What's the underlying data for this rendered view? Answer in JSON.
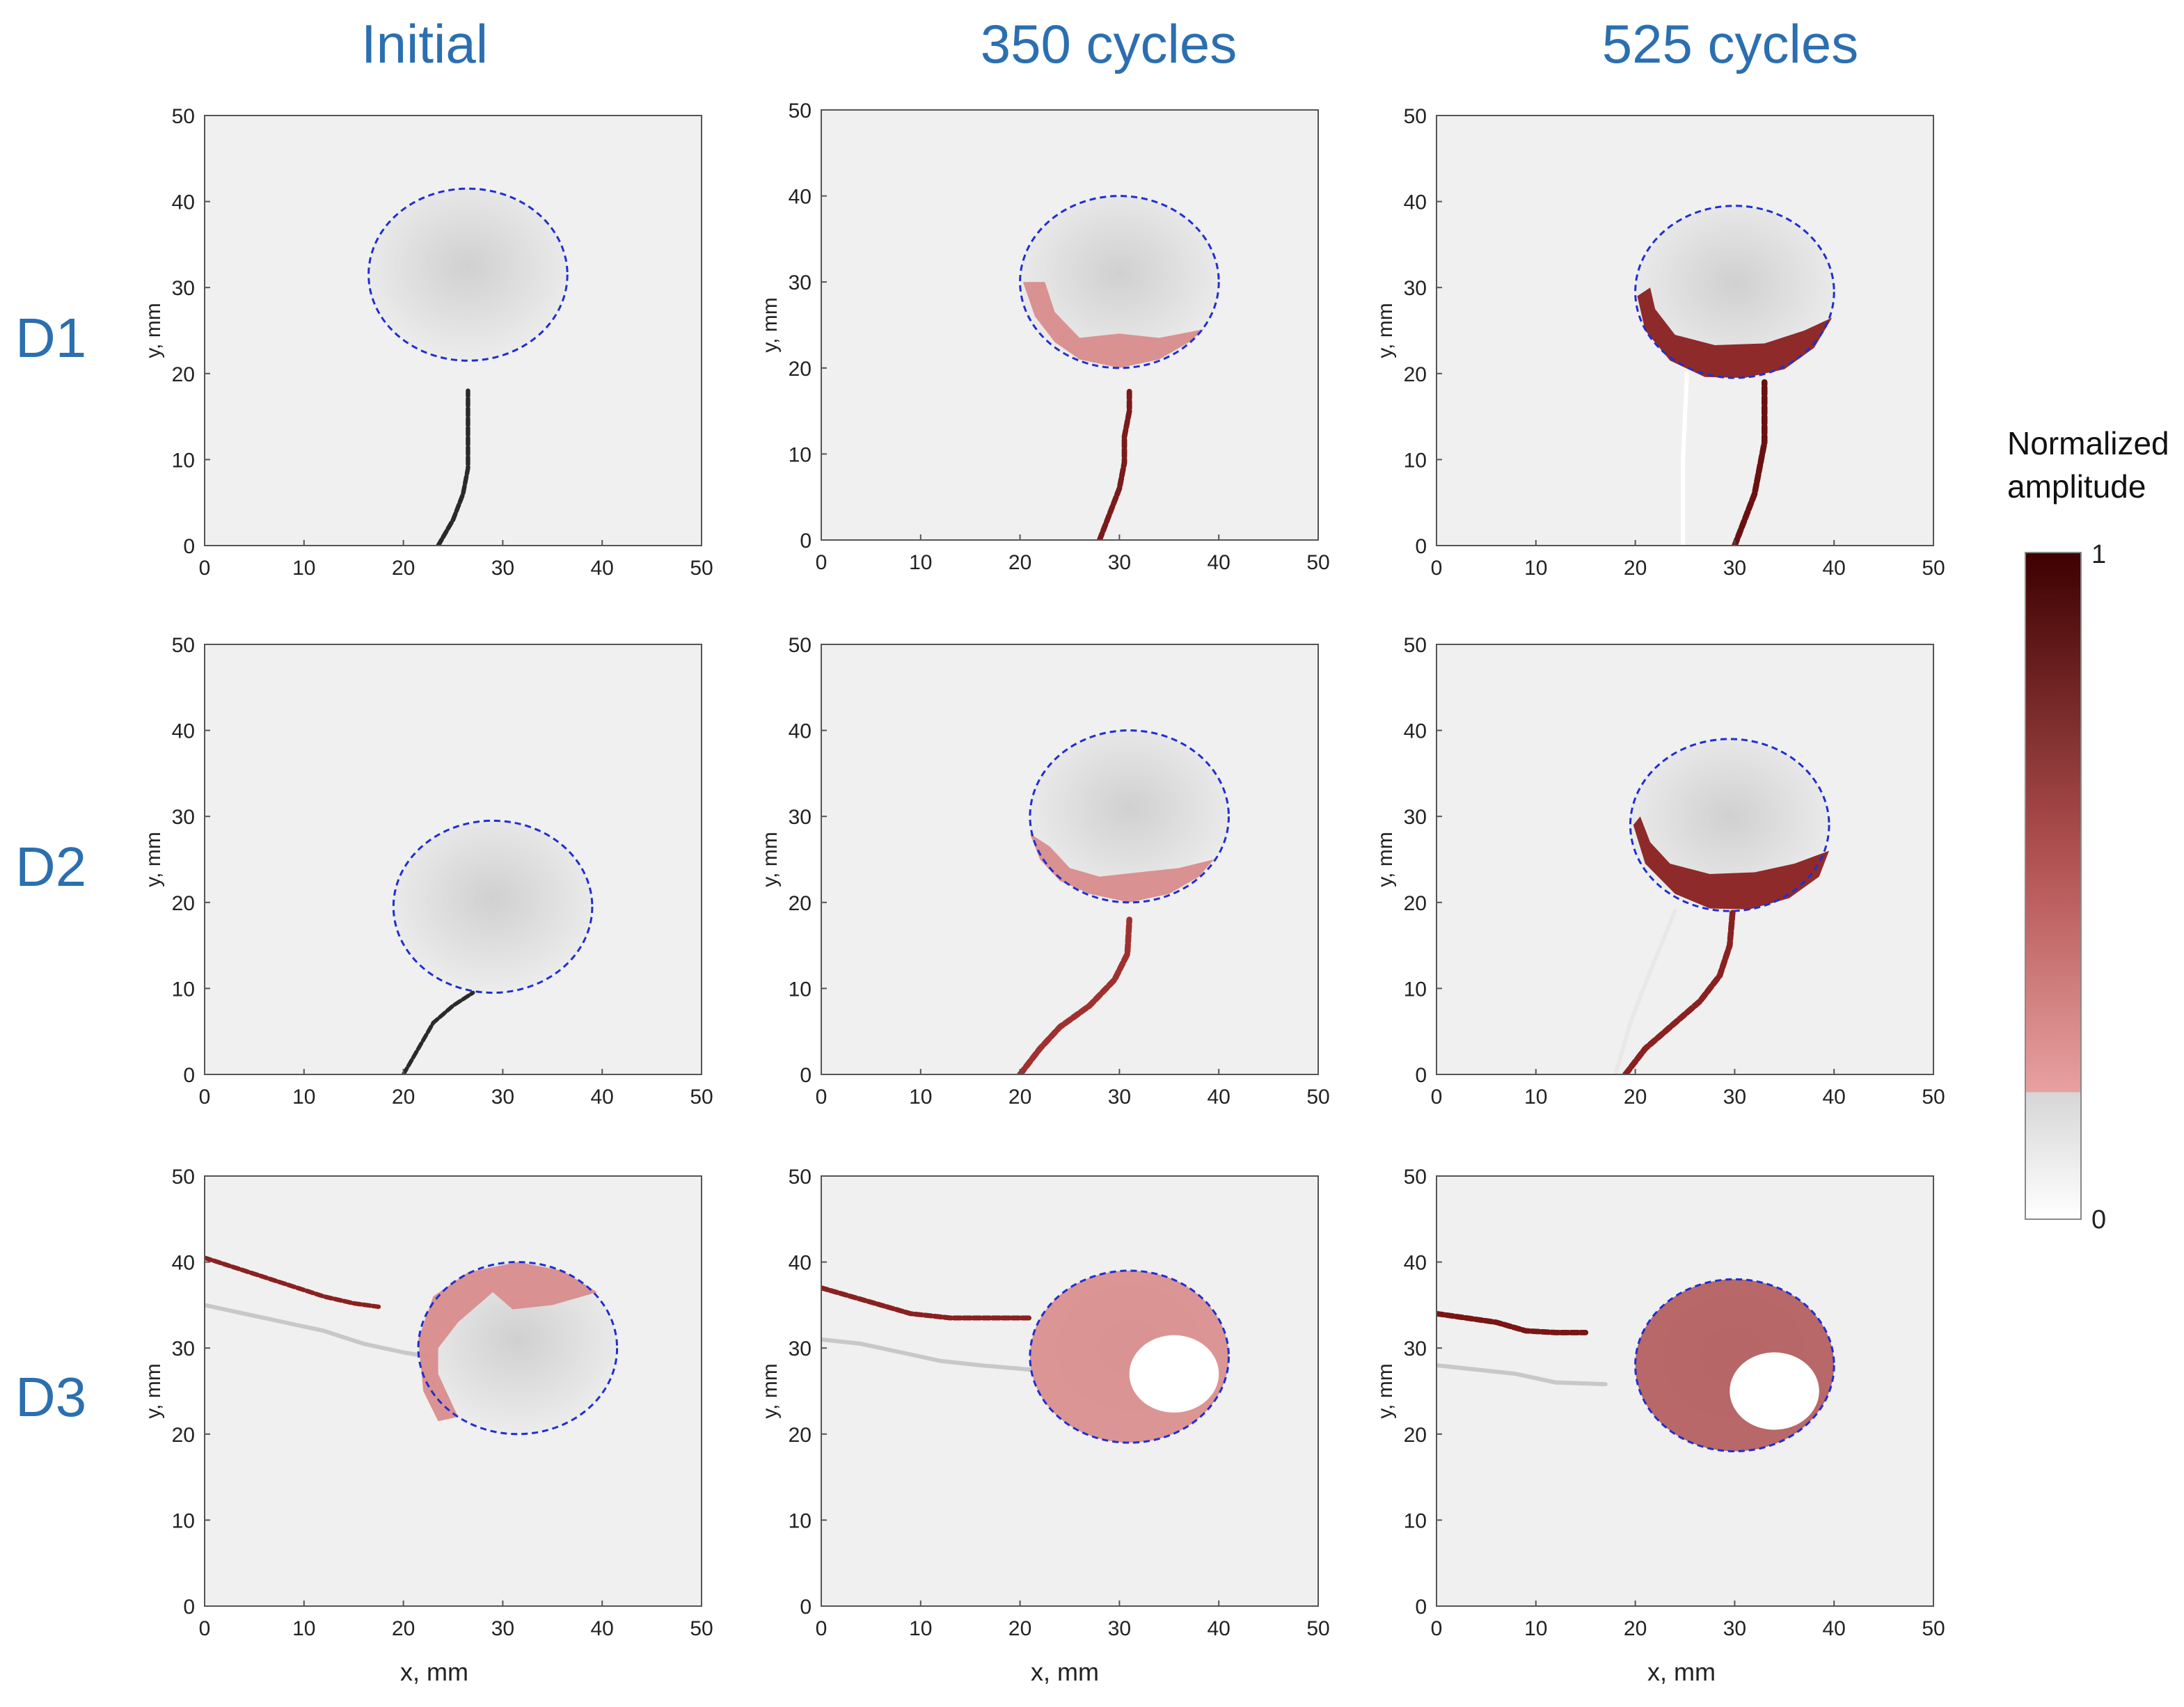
{
  "column_titles": [
    "Initial",
    "350 cycles",
    "525 cycles"
  ],
  "row_labels": [
    "D1",
    "D2",
    "D3"
  ],
  "x_axis_label": "x, mm",
  "y_axis_label": "y, mm",
  "colorbar": {
    "title_line1": "Normalized",
    "title_line2": "amplitude",
    "max_label": "1",
    "min_label": "0",
    "colors": {
      "low": "#ffffff",
      "mid_gray": "#d6d6d6",
      "threshold_red": "#e8a0a0",
      "high": "#3d0000"
    }
  },
  "colors": {
    "title_blue": "#2b6fb0",
    "ellipse_dash": "#1f2fd0",
    "background_gray": "#f0f0f0",
    "damage_light": "#d88a8a",
    "damage_dark": "#6b1010"
  },
  "chart_data": [
    {
      "type": "heatmap",
      "row": "D1",
      "col": "Initial",
      "xlim": [
        0,
        50
      ],
      "ylim": [
        0,
        50
      ],
      "xticks": [
        0,
        10,
        20,
        30,
        40,
        50
      ],
      "yticks": [
        0,
        10,
        20,
        30,
        40,
        50
      ],
      "ellipse": {
        "cx": 26.5,
        "cy": 31.5,
        "rx": 10,
        "ry": 10
      },
      "crack": [
        [
          23.5,
          0
        ],
        [
          25,
          3
        ],
        [
          26,
          6
        ],
        [
          26.5,
          9
        ],
        [
          26.5,
          12
        ],
        [
          26.5,
          15
        ],
        [
          26.5,
          18
        ]
      ],
      "crack_color": "#2a2a2a",
      "crack_width": 0.45,
      "crack2": [],
      "crack2_color": "#c4c4c4",
      "damage": {
        "points": [],
        "color": ""
      }
    },
    {
      "type": "heatmap",
      "row": "D1",
      "col": "350 cycles",
      "xlim": [
        0,
        50
      ],
      "ylim": [
        0,
        50
      ],
      "xticks": [
        0,
        10,
        20,
        30,
        40,
        50
      ],
      "yticks": [
        0,
        10,
        20,
        30,
        40,
        50
      ],
      "ellipse": {
        "cx": 30,
        "cy": 30,
        "rx": 10,
        "ry": 10
      },
      "crack": [
        [
          28,
          0
        ],
        [
          29,
          3
        ],
        [
          30,
          6
        ],
        [
          30.5,
          9
        ],
        [
          30.5,
          12
        ],
        [
          31,
          15
        ],
        [
          31,
          17.5
        ]
      ],
      "crack_color": "#7a1a1a",
      "crack_width": 0.55,
      "crack2": [],
      "crack2_color": "#c4c4c4",
      "damage": {
        "points": [
          [
            20.3,
            30
          ],
          [
            21.5,
            26
          ],
          [
            23.5,
            23
          ],
          [
            26,
            21
          ],
          [
            30,
            20
          ],
          [
            34,
            21
          ],
          [
            37,
            23
          ],
          [
            38.5,
            24.5
          ],
          [
            34,
            23.5
          ],
          [
            30,
            24
          ],
          [
            26,
            23.5
          ],
          [
            23.5,
            26.5
          ],
          [
            22.5,
            30
          ]
        ],
        "color": "#d98c8c"
      }
    },
    {
      "type": "heatmap",
      "row": "D1",
      "col": "525 cycles",
      "xlim": [
        0,
        50
      ],
      "ylim": [
        0,
        50
      ],
      "xticks": [
        0,
        10,
        20,
        30,
        40,
        50
      ],
      "yticks": [
        0,
        10,
        20,
        30,
        40,
        50
      ],
      "ellipse": {
        "cx": 30,
        "cy": 29.5,
        "rx": 10,
        "ry": 10
      },
      "crack": [
        [
          30,
          0
        ],
        [
          31,
          3
        ],
        [
          32,
          6
        ],
        [
          32.5,
          9
        ],
        [
          33,
          12
        ],
        [
          33,
          15
        ],
        [
          33,
          19
        ]
      ],
      "crack_color": "#6b1010",
      "crack_width": 0.6,
      "crack2": [
        [
          24.8,
          0
        ],
        [
          24.8,
          10
        ],
        [
          25.2,
          20
        ]
      ],
      "crack2_color": "#ffffff",
      "damage": {
        "points": [
          [
            20.2,
            29
          ],
          [
            21,
            25
          ],
          [
            23.5,
            21.5
          ],
          [
            27,
            19.6
          ],
          [
            31,
            19.5
          ],
          [
            35,
            20.5
          ],
          [
            38,
            23
          ],
          [
            39.8,
            26.5
          ],
          [
            37,
            25
          ],
          [
            33,
            23.5
          ],
          [
            28,
            23.3
          ],
          [
            24,
            24.5
          ],
          [
            22,
            27.5
          ],
          [
            21.5,
            30
          ]
        ],
        "color": "#8a2020"
      }
    },
    {
      "type": "heatmap",
      "row": "D2",
      "col": "Initial",
      "xlim": [
        0,
        50
      ],
      "ylim": [
        0,
        50
      ],
      "xticks": [
        0,
        10,
        20,
        30,
        40,
        50
      ],
      "yticks": [
        0,
        10,
        20,
        30,
        40,
        50
      ],
      "ellipse": {
        "cx": 29,
        "cy": 19.5,
        "rx": 10,
        "ry": 10
      },
      "crack": [
        [
          20,
          0
        ],
        [
          21.5,
          3
        ],
        [
          23,
          6
        ],
        [
          25,
          8
        ],
        [
          27,
          9.5
        ]
      ],
      "crack_color": "#2a2a2a",
      "crack_width": 0.4,
      "crack2": [],
      "crack2_color": "#c4c4c4",
      "damage": {
        "points": [],
        "color": ""
      }
    },
    {
      "type": "heatmap",
      "row": "D2",
      "col": "350 cycles",
      "xlim": [
        0,
        50
      ],
      "ylim": [
        0,
        50
      ],
      "xticks": [
        0,
        10,
        20,
        30,
        40,
        50
      ],
      "yticks": [
        0,
        10,
        20,
        30,
        40,
        50
      ],
      "ellipse": {
        "cx": 31,
        "cy": 30,
        "rx": 10,
        "ry": 10
      },
      "crack": [
        [
          20,
          0
        ],
        [
          22,
          3
        ],
        [
          24,
          5.5
        ],
        [
          27,
          8
        ],
        [
          29.5,
          11
        ],
        [
          30.8,
          14
        ],
        [
          31,
          18
        ]
      ],
      "crack_color": "#a03030",
      "crack_width": 0.6,
      "crack2": [],
      "crack2_color": "#c4c4c4",
      "damage": {
        "points": [
          [
            21,
            28
          ],
          [
            22,
            25
          ],
          [
            24,
            22.5
          ],
          [
            27,
            21
          ],
          [
            31,
            20
          ],
          [
            35,
            21
          ],
          [
            38,
            23
          ],
          [
            39.5,
            25
          ],
          [
            36,
            24
          ],
          [
            32,
            23.5
          ],
          [
            28,
            23
          ],
          [
            25,
            24
          ],
          [
            23,
            26.5
          ]
        ],
        "color": "#d98c8c"
      }
    },
    {
      "type": "heatmap",
      "row": "D2",
      "col": "525 cycles",
      "xlim": [
        0,
        50
      ],
      "ylim": [
        0,
        50
      ],
      "xticks": [
        0,
        10,
        20,
        30,
        40,
        50
      ],
      "yticks": [
        0,
        10,
        20,
        30,
        40,
        50
      ],
      "ellipse": {
        "cx": 29.5,
        "cy": 29,
        "rx": 10,
        "ry": 10
      },
      "crack": [
        [
          19,
          0
        ],
        [
          21,
          3
        ],
        [
          23.5,
          5.5
        ],
        [
          26.5,
          8.5
        ],
        [
          28.5,
          11.5
        ],
        [
          29.5,
          15
        ],
        [
          29.8,
          19
        ]
      ],
      "crack_color": "#8a2020",
      "crack_width": 0.6,
      "crack2": [
        [
          18,
          0
        ],
        [
          19.5,
          6
        ],
        [
          21.5,
          12
        ],
        [
          24,
          19
        ]
      ],
      "crack2_color": "#e8e8e8",
      "damage": {
        "points": [
          [
            19.8,
            29
          ],
          [
            21,
            24.5
          ],
          [
            24,
            21
          ],
          [
            27.5,
            19.3
          ],
          [
            31.5,
            19.2
          ],
          [
            35.5,
            20.5
          ],
          [
            38.5,
            23
          ],
          [
            39.5,
            26
          ],
          [
            36,
            24.5
          ],
          [
            32,
            23.5
          ],
          [
            27.5,
            23.3
          ],
          [
            23.5,
            24.5
          ],
          [
            21.5,
            27
          ],
          [
            20.5,
            30
          ]
        ],
        "color": "#8a2020"
      }
    },
    {
      "type": "heatmap",
      "row": "D3",
      "col": "Initial",
      "xlim": [
        0,
        50
      ],
      "ylim": [
        0,
        50
      ],
      "xticks": [
        0,
        10,
        20,
        30,
        40,
        50
      ],
      "yticks": [
        0,
        10,
        20,
        30,
        40,
        50
      ],
      "ellipse": {
        "cx": 31.5,
        "cy": 30,
        "rx": 10,
        "ry": 10
      },
      "crack": [
        [
          0,
          40.5
        ],
        [
          4,
          39
        ],
        [
          8,
          37.5
        ],
        [
          12,
          36
        ],
        [
          15,
          35.2
        ],
        [
          17.5,
          34.8
        ]
      ],
      "crack_color": "#8a2020",
      "crack_width": 0.45,
      "crack2": [
        [
          0,
          35
        ],
        [
          4,
          34
        ],
        [
          8,
          33
        ],
        [
          12,
          32
        ],
        [
          16,
          30.5
        ],
        [
          20,
          29.5
        ],
        [
          22.5,
          29
        ]
      ],
      "crack2_color": "#c8c8c8",
      "damage": {
        "points": [
          [
            21.5,
            31
          ],
          [
            23,
            36
          ],
          [
            26.5,
            38.8
          ],
          [
            31.5,
            40
          ],
          [
            36,
            39
          ],
          [
            39.5,
            36.5
          ],
          [
            35,
            35
          ],
          [
            31,
            34.5
          ],
          [
            29,
            36.5
          ],
          [
            27.5,
            35
          ],
          [
            25.5,
            33
          ],
          [
            23.5,
            30
          ],
          [
            23.5,
            27
          ],
          [
            25.5,
            22
          ],
          [
            23.5,
            21.5
          ],
          [
            22,
            25
          ]
        ],
        "color": "#d98c8c"
      }
    },
    {
      "type": "heatmap",
      "row": "D3",
      "col": "350 cycles",
      "xlim": [
        0,
        50
      ],
      "ylim": [
        0,
        50
      ],
      "xticks": [
        0,
        10,
        20,
        30,
        40,
        50
      ],
      "yticks": [
        0,
        10,
        20,
        30,
        40,
        50
      ],
      "ellipse": {
        "cx": 31,
        "cy": 29,
        "rx": 10,
        "ry": 10
      },
      "crack": [
        [
          0,
          37
        ],
        [
          3,
          36
        ],
        [
          6,
          35
        ],
        [
          9,
          34
        ],
        [
          13,
          33.5
        ],
        [
          17,
          33.5
        ],
        [
          21,
          33.5
        ]
      ],
      "crack_color": "#8a2020",
      "crack_width": 0.5,
      "crack2": [
        [
          0,
          31
        ],
        [
          4,
          30.5
        ],
        [
          8,
          29.5
        ],
        [
          12,
          28.5
        ],
        [
          16,
          28
        ],
        [
          21,
          27.5
        ]
      ],
      "crack2_color": "#c8c8c8",
      "damage": {
        "points": [],
        "color": "#d98c8c",
        "fill_ellipse": true,
        "white_blob": {
          "cx": 35.5,
          "cy": 27,
          "rx": 4.5,
          "ry": 4.5
        }
      }
    },
    {
      "type": "heatmap",
      "row": "D3",
      "col": "525 cycles",
      "xlim": [
        0,
        50
      ],
      "ylim": [
        0,
        50
      ],
      "xticks": [
        0,
        10,
        20,
        30,
        40,
        50
      ],
      "yticks": [
        0,
        10,
        20,
        30,
        40,
        50
      ],
      "ellipse": {
        "cx": 30,
        "cy": 28,
        "rx": 10,
        "ry": 10
      },
      "crack": [
        [
          0,
          34
        ],
        [
          3,
          33.5
        ],
        [
          6,
          33
        ],
        [
          9,
          32
        ],
        [
          12,
          31.8
        ],
        [
          15,
          31.8
        ]
      ],
      "crack_color": "#7a1515",
      "crack_width": 0.55,
      "crack2": [
        [
          0,
          28
        ],
        [
          4,
          27.5
        ],
        [
          8,
          27
        ],
        [
          12,
          26
        ],
        [
          17,
          25.8
        ]
      ],
      "crack2_color": "#c8c8c8",
      "damage": {
        "points": [],
        "color": "#b35a5a",
        "fill_ellipse": true,
        "white_blob": {
          "cx": 34,
          "cy": 25,
          "rx": 4.5,
          "ry": 4.5
        }
      }
    }
  ]
}
